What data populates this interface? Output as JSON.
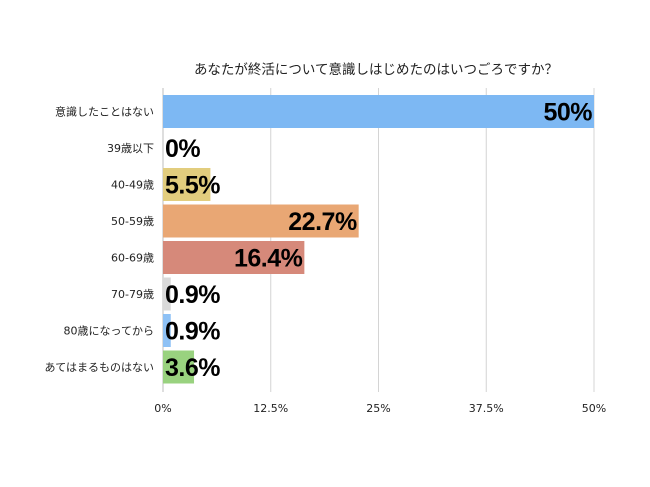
{
  "chart_data": {
    "type": "bar",
    "orientation": "horizontal",
    "title": "あなたが終活について意識しはじめたのはいつごろですか？",
    "xlabel": "",
    "ylabel": "",
    "categories": [
      "意識したことはない",
      "39歳以下",
      "40-49歳",
      "50-59歳",
      "60-69歳",
      "70-79歳",
      "80歳になってから",
      "あてはまるものはない"
    ],
    "values": [
      50,
      0,
      5.5,
      22.7,
      16.4,
      0.9,
      0.9,
      3.6
    ],
    "value_labels": [
      "50%",
      "0%",
      "5.5%",
      "22.7%",
      "16.4%",
      "0.9%",
      "0.9%",
      "3.6%"
    ],
    "bar_colors": [
      "#7db8f3",
      "#e0e0e0",
      "#e2cd7e",
      "#e9a774",
      "#d6897a",
      "#d9d9d9",
      "#8ec1f5",
      "#99d27f"
    ],
    "xlim": [
      0,
      50
    ],
    "xticks": [
      0,
      12.5,
      25,
      37.5,
      50
    ],
    "xtick_labels": [
      "0%",
      "12.5%",
      "25%",
      "37.5%",
      "50%"
    ],
    "grid": true,
    "legend": "none"
  }
}
